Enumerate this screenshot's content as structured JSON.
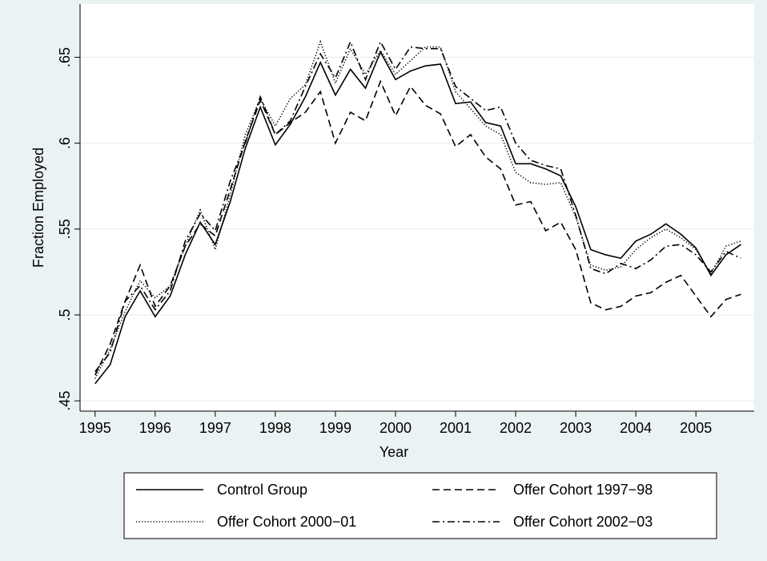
{
  "chart_data": {
    "type": "line",
    "x_label": "Year",
    "y_label": "Fraction Employed",
    "x": [
      1995,
      1995.25,
      1995.5,
      1995.75,
      1996,
      1996.25,
      1996.5,
      1996.75,
      1997,
      1997.25,
      1997.5,
      1997.75,
      1998,
      1998.25,
      1998.5,
      1998.75,
      1999,
      1999.25,
      1999.5,
      1999.75,
      2000,
      2000.25,
      2000.5,
      2000.75,
      2001,
      2001.25,
      2001.5,
      2001.75,
      2002,
      2002.25,
      2002.5,
      2002.75,
      2003,
      2003.25,
      2003.5,
      2003.75,
      2004,
      2004.25,
      2004.5,
      2004.75,
      2005,
      2005.25,
      2005.5,
      2005.75
    ],
    "series": [
      {
        "name": "Control Group",
        "color": "#000000",
        "dash": "none",
        "values": [
          0.46,
          0.471,
          0.499,
          0.514,
          0.499,
          0.511,
          0.535,
          0.554,
          0.541,
          0.566,
          0.597,
          0.621,
          0.599,
          0.611,
          0.627,
          0.647,
          0.628,
          0.643,
          0.632,
          0.653,
          0.637,
          0.642,
          0.645,
          0.646,
          0.623,
          0.624,
          0.612,
          0.61,
          0.588,
          0.588,
          0.585,
          0.581,
          0.563,
          0.538,
          0.535,
          0.533,
          0.543,
          0.547,
          0.553,
          0.547,
          0.539,
          0.523,
          0.535,
          0.541
        ]
      },
      {
        "name": "Offer Cohort 1997−98",
        "color": "#000000",
        "dash": "9 5",
        "values": [
          0.465,
          0.483,
          0.508,
          0.529,
          0.505,
          0.517,
          0.54,
          0.553,
          0.546,
          0.573,
          0.601,
          0.625,
          0.605,
          0.612,
          0.618,
          0.63,
          0.6,
          0.618,
          0.613,
          0.636,
          0.616,
          0.633,
          0.622,
          0.617,
          0.598,
          0.605,
          0.592,
          0.585,
          0.564,
          0.566,
          0.549,
          0.554,
          0.538,
          0.507,
          0.503,
          0.505,
          0.511,
          0.513,
          0.519,
          0.523,
          0.511,
          0.499,
          0.509,
          0.512
        ]
      },
      {
        "name": "Offer Cohort 2000−01",
        "color": "#000000",
        "dash": "1.2 2.4",
        "values": [
          0.463,
          0.48,
          0.502,
          0.52,
          0.51,
          0.517,
          0.54,
          0.561,
          0.538,
          0.57,
          0.605,
          0.626,
          0.61,
          0.626,
          0.634,
          0.659,
          0.635,
          0.655,
          0.64,
          0.654,
          0.64,
          0.648,
          0.656,
          0.656,
          0.63,
          0.62,
          0.61,
          0.605,
          0.583,
          0.577,
          0.576,
          0.577,
          0.557,
          0.529,
          0.526,
          0.528,
          0.538,
          0.545,
          0.55,
          0.545,
          0.538,
          0.524,
          0.54,
          0.543
        ]
      },
      {
        "name": "Offer Cohort 2002−03",
        "color": "#000000",
        "dash": "9 4 2 4",
        "values": [
          0.467,
          0.478,
          0.508,
          0.517,
          0.503,
          0.514,
          0.543,
          0.559,
          0.549,
          0.578,
          0.6,
          0.627,
          0.605,
          0.613,
          0.633,
          0.652,
          0.638,
          0.659,
          0.637,
          0.659,
          0.643,
          0.656,
          0.655,
          0.655,
          0.633,
          0.626,
          0.619,
          0.621,
          0.6,
          0.59,
          0.587,
          0.585,
          0.558,
          0.527,
          0.524,
          0.53,
          0.527,
          0.532,
          0.54,
          0.541,
          0.535,
          0.525,
          0.537,
          0.533
        ]
      }
    ],
    "xlim": [
      1994.75,
      2005.97
    ],
    "ylim": [
      0.444,
      0.681
    ],
    "xticks": [
      1995,
      1996,
      1997,
      1998,
      1999,
      2000,
      2001,
      2002,
      2003,
      2004,
      2005
    ],
    "yticks": [
      {
        "value": 0.45,
        "label": ".45"
      },
      {
        "value": 0.5,
        "label": ".5"
      },
      {
        "value": 0.55,
        "label": ".55"
      },
      {
        "value": 0.6,
        "label": ".6"
      },
      {
        "value": 0.65,
        "label": ".65"
      }
    ],
    "grid": true,
    "legend": "bottom"
  }
}
